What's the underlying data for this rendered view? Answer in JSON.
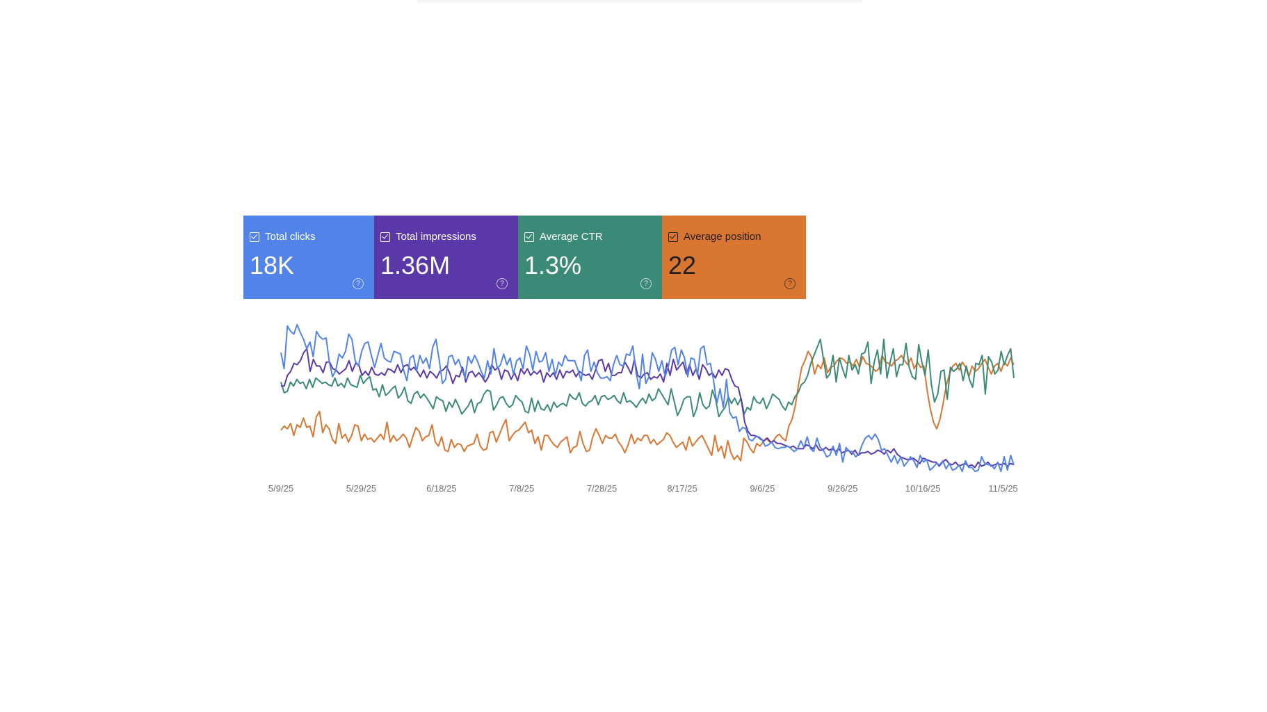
{
  "colors": {
    "clicks": "#5183e8",
    "impressions": "#5b38a8",
    "ctr": "#3b8a75",
    "position": "#d97631"
  },
  "cards": [
    {
      "label": "Total clicks",
      "value": "18K",
      "help_icon": "help-circle-icon",
      "checkbox_icon": "checkbox-checked-icon",
      "checked": true,
      "color": "#5183e8"
    },
    {
      "label": "Total impressions",
      "value": "1.36M",
      "help_icon": "help-circle-icon",
      "checkbox_icon": "checkbox-checked-icon",
      "checked": true,
      "color": "#5b38a8"
    },
    {
      "label": "Average CTR",
      "value": "1.3%",
      "help_icon": "help-circle-icon",
      "checkbox_icon": "checkbox-checked-icon",
      "checked": true,
      "color": "#3b8a75"
    },
    {
      "label": "Average position",
      "value": "22",
      "help_icon": "help-circle-icon",
      "checkbox_icon": "checkbox-checked-icon",
      "checked": true,
      "color": "#d97631"
    }
  ],
  "chart_data": {
    "type": "line",
    "x_ticks": [
      "5/9/25",
      "5/29/25",
      "6/18/25",
      "7/8/25",
      "7/28/25",
      "8/17/25",
      "9/6/25",
      "9/26/25",
      "10/16/25",
      "11/5/25"
    ],
    "x_range": [
      "5/9/25",
      "11/5/25"
    ],
    "grid": false,
    "legend": "none",
    "series": [
      {
        "name": "Total clicks",
        "color": "#5183e8",
        "values": [
          120,
          108,
          140,
          136,
          134,
          141,
          135,
          130,
          123,
          128,
          117,
          136,
          132,
          130,
          131,
          113,
          102,
          107,
          119,
          116,
          121,
          134,
          130,
          114,
          110,
          121,
          127,
          128,
          118,
          109,
          118,
          127,
          116,
          114,
          113,
          121,
          120,
          119,
          107,
          99,
          116,
          118,
          106,
          118,
          112,
          116,
          108,
          124,
          130,
          115,
          97,
          100,
          117,
          118,
          111,
          115,
          108,
          101,
          117,
          112,
          118,
          113,
          106,
          101,
          114,
          104,
          123,
          108,
          111,
          119,
          111,
          116,
          104,
          114,
          116,
          108,
          125,
          119,
          107,
          121,
          113,
          114,
          120,
          106,
          115,
          103,
          113,
          110,
          118,
          114,
          114,
          114,
          107,
          99,
          118,
          122,
          106,
          113,
          105,
          101,
          101,
          102,
          99,
          111,
          118,
          111,
          110,
          119,
          118,
          125,
          105,
          93,
          119,
          97,
          102,
          120,
          115,
          106,
          114,
          102,
          110,
          122,
          124,
          111,
          122,
          116,
          102,
          116,
          115,
          103,
          123,
          125,
          111,
          112,
          99,
          82,
          93,
          79,
          100,
          75,
          71,
          72,
          61,
          64,
          63,
          55,
          54,
          57,
          57,
          55,
          50,
          51,
          53,
          49,
          48,
          49,
          49,
          50,
          48,
          46,
          48,
          54,
          49,
          57,
          48,
          46,
          56,
          49,
          47,
          42,
          43,
          50,
          43,
          52,
          38,
          49,
          46,
          46,
          42,
          44,
          51,
          56,
          58,
          55,
          59,
          55,
          47,
          48,
          43,
          38,
          43,
          37,
          42,
          35,
          38,
          42,
          39,
          34,
          43,
          38,
          40,
          32,
          34,
          37,
          36,
          39,
          33,
          37,
          32,
          33,
          36,
          31,
          39,
          34,
          34,
          31,
          32,
          42,
          37,
          36,
          36,
          33,
          38,
          31,
          42,
          32,
          43,
          36
        ]
      },
      {
        "name": "Total impressions",
        "color": "#5b38a8",
        "values": [
          95,
          95,
          103,
          106,
          112,
          111,
          114,
          120,
          123,
          106,
          115,
          110,
          110,
          105,
          113,
          113,
          108,
          107,
          104,
          106,
          108,
          114,
          106,
          112,
          111,
          103,
          106,
          103,
          109,
          104,
          103,
          105,
          103,
          108,
          107,
          105,
          111,
          105,
          110,
          111,
          107,
          109,
          106,
          102,
          107,
          101,
          106,
          104,
          101,
          106,
          107,
          110,
          105,
          97,
          103,
          102,
          109,
          98,
          105,
          106,
          102,
          105,
          102,
          98,
          102,
          111,
          107,
          109,
          100,
          107,
          106,
          100,
          105,
          99,
          108,
          104,
          108,
          103,
          106,
          104,
          107,
          98,
          105,
          102,
          105,
          100,
          107,
          101,
          106,
          105,
          107,
          102,
          106,
          104,
          103,
          104,
          100,
          107,
          114,
          115,
          106,
          112,
          103,
          103,
          105,
          105,
          113,
          109,
          104,
          115,
          103,
          101,
          104,
          105,
          100,
          102,
          101,
          104,
          98,
          112,
          103,
          115,
          107,
          110,
          113,
          104,
          111,
          103,
          108,
          100,
          111,
          108,
          103,
          105,
          101,
          107,
          103,
          108,
          107,
          100,
          95,
          94,
          84,
          68,
          61,
          58,
          58,
          57,
          55,
          54,
          56,
          53,
          54,
          52,
          52,
          51,
          50,
          49,
          50,
          48,
          48,
          48,
          51,
          50,
          48,
          51,
          47,
          47,
          49,
          47,
          48,
          46,
          48,
          45,
          46,
          47,
          44,
          47,
          43,
          45,
          45,
          46,
          44,
          45,
          47,
          46,
          44,
          47,
          45,
          48,
          44,
          42,
          41,
          40,
          40,
          41,
          39,
          37,
          41,
          40,
          39,
          38,
          38,
          35,
          38,
          40,
          37,
          36,
          38,
          35,
          36,
          37,
          35,
          36,
          34,
          38,
          35,
          36,
          38,
          35,
          36,
          37,
          36,
          37,
          35,
          37,
          36
        ]
      },
      {
        "name": "Average CTR",
        "color": "#3b8a75",
        "values": [
          98,
          90,
          91,
          98,
          95,
          100,
          97,
          98,
          93,
          100,
          94,
          101,
          99,
          97,
          98,
          96,
          95,
          101,
          95,
          97,
          94,
          101,
          96,
          95,
          94,
          103,
          97,
          100,
          102,
          92,
          93,
          87,
          96,
          88,
          90,
          93,
          95,
          86,
          89,
          94,
          84,
          82,
          89,
          91,
          86,
          89,
          86,
          82,
          78,
          87,
          85,
          84,
          76,
          83,
          79,
          85,
          80,
          74,
          77,
          80,
          85,
          75,
          82,
          83,
          89,
          92,
          91,
          77,
          81,
          86,
          87,
          82,
          79,
          81,
          88,
          85,
          83,
          76,
          75,
          86,
          76,
          84,
          78,
          77,
          81,
          76,
          83,
          79,
          81,
          82,
          80,
          89,
          86,
          85,
          90,
          82,
          80,
          83,
          84,
          88,
          81,
          87,
          88,
          85,
          86,
          88,
          84,
          82,
          90,
          83,
          84,
          82,
          79,
          83,
          86,
          82,
          89,
          84,
          86,
          93,
          89,
          85,
          81,
          93,
          83,
          73,
          78,
          85,
          87,
          87,
          72,
          78,
          90,
          81,
          78,
          80,
          92,
          85,
          72,
          76,
          79,
          87,
          82,
          86,
          81,
          86,
          74,
          79,
          77,
          87,
          83,
          82,
          86,
          78,
          83,
          89,
          87,
          85,
          80,
          77,
          83,
          81,
          87,
          90,
          96,
          98,
          103,
          112,
          118,
          124,
          130,
          115,
          101,
          104,
          118,
          98,
          116,
          108,
          101,
          118,
          107,
          111,
          104,
          119,
          120,
          128,
          97,
          113,
          122,
          104,
          130,
          101,
          113,
          123,
          102,
          111,
          111,
          127,
          109,
          102,
          100,
          126,
          113,
          103,
          122,
          96,
          83,
          89,
          106,
          107,
          85,
          109,
          106,
          108,
          112,
          99,
          110,
          100,
          94,
          112,
          111,
          118,
          89,
          117,
          113,
          104,
          107,
          121,
          111,
          118,
          123,
          101
        ]
      },
      {
        "name": "Average position",
        "color": "#d97631",
        "values": [
          62,
          65,
          63,
          67,
          58,
          66,
          64,
          71,
          64,
          65,
          57,
          72,
          76,
          60,
          66,
          63,
          55,
          52,
          67,
          56,
          59,
          53,
          58,
          66,
          65,
          54,
          59,
          55,
          56,
          53,
          56,
          59,
          55,
          68,
          53,
          58,
          54,
          56,
          59,
          56,
          49,
          57,
          64,
          61,
          54,
          57,
          58,
          66,
          53,
          50,
          57,
          47,
          46,
          55,
          49,
          52,
          51,
          46,
          50,
          51,
          52,
          59,
          50,
          47,
          48,
          60,
          61,
          53,
          59,
          65,
          70,
          54,
          58,
          61,
          62,
          65,
          68,
          60,
          62,
          52,
          57,
          47,
          58,
          58,
          54,
          51,
          49,
          53,
          55,
          57,
          45,
          49,
          50,
          61,
          52,
          46,
          47,
          57,
          63,
          58,
          52,
          58,
          56,
          56,
          59,
          53,
          50,
          45,
          51,
          59,
          52,
          56,
          54,
          58,
          58,
          52,
          55,
          51,
          53,
          55,
          60,
          58,
          53,
          49,
          51,
          53,
          47,
          57,
          50,
          53,
          56,
          58,
          53,
          48,
          43,
          58,
          46,
          50,
          41,
          54,
          45,
          40,
          43,
          39,
          56,
          53,
          48,
          45,
          52,
          50,
          53,
          56,
          53,
          53,
          57,
          59,
          56,
          54,
          65,
          70,
          80,
          96,
          109,
          114,
          121,
          117,
          104,
          111,
          108,
          116,
          105,
          109,
          110,
          114,
          116,
          115,
          112,
          113,
          110,
          115,
          109,
          117,
          112,
          111,
          109,
          106,
          108,
          118,
          113,
          112,
          110,
          114,
          115,
          118,
          114,
          111,
          116,
          108,
          113,
          109,
          110,
          92,
          78,
          68,
          63,
          70,
          82,
          96,
          104,
          110,
          112,
          107,
          113,
          109,
          102,
          110,
          106,
          108,
          112,
          115,
          109,
          104,
          110,
          112,
          106,
          113,
          110,
          116,
          111
        ]
      }
    ]
  }
}
